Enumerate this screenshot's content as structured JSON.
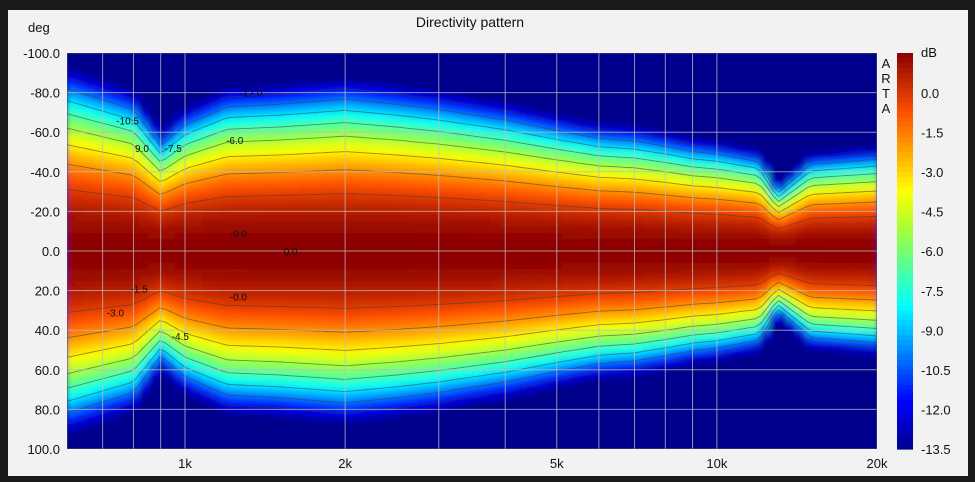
{
  "chart_data": {
    "type": "heatmap",
    "title": "Directivity pattern",
    "ylabel": "deg",
    "colorbar_label": "dB",
    "watermark": "ARTA",
    "x_scale": "log",
    "xlim": [
      600,
      20000
    ],
    "ylim": [
      -100,
      100
    ],
    "x_ticks": [
      1000,
      2000,
      5000,
      10000,
      20000
    ],
    "x_tick_labels": [
      "1k",
      "2k",
      "5k",
      "10k",
      "20k"
    ],
    "y_ticks": [
      -100,
      -80,
      -60,
      -40,
      -20,
      0,
      20,
      40,
      60,
      80,
      100
    ],
    "y_tick_labels": [
      "-100.0",
      "-80.0",
      "-60.0",
      "-40.0",
      "-20.0",
      "0.0",
      "20.0",
      "40.0",
      "60.0",
      "80.0",
      "100.0"
    ],
    "colorbar_ticks": [
      0.0,
      -1.5,
      -3.0,
      -4.5,
      -6.0,
      -7.5,
      -9.0,
      -10.5,
      -12.0,
      -13.5
    ],
    "colorbar_tick_labels": [
      "0.0",
      "-1.5",
      "-3.0",
      "-4.5",
      "-6.0",
      "-7.5",
      "-9.0",
      "-10.5",
      "-12.0",
      "-13.5"
    ],
    "zlim": [
      -13.5,
      0
    ],
    "contour_levels": [
      -1.5,
      -3.0,
      -4.5,
      -6.0,
      -7.5,
      -9.0,
      -10.5,
      -12.0
    ],
    "beamwidth": {
      "freq_hz": [
        600,
        800,
        900,
        1000,
        1200,
        1500,
        2000,
        2500,
        3000,
        4000,
        5000,
        6000,
        7000,
        8000,
        9000,
        10000,
        12000,
        13000,
        15000,
        20000
      ],
      "minus6db_half_angle_deg": [
        62,
        54,
        40,
        48,
        55,
        56,
        58,
        56,
        54,
        50,
        46,
        43,
        42,
        40,
        38,
        37,
        34,
        22,
        33,
        35
      ]
    },
    "contour_labels": [
      {
        "text": "-10.5",
        "freq_hz": 780,
        "angle_deg": -66
      },
      {
        "text": "9.0",
        "freq_hz": 830,
        "angle_deg": -52
      },
      {
        "text": "-7.5",
        "freq_hz": 950,
        "angle_deg": -52
      },
      {
        "text": "-6.0",
        "freq_hz": 1240,
        "angle_deg": -56
      },
      {
        "text": "-12.0",
        "freq_hz": 1330,
        "angle_deg": -80
      },
      {
        "text": "-0.0",
        "freq_hz": 1260,
        "angle_deg": -9
      },
      {
        "text": "0.0",
        "freq_hz": 1580,
        "angle_deg": 0
      },
      {
        "text": "-0.0",
        "freq_hz": 1260,
        "angle_deg": 23
      },
      {
        "text": "-1.5",
        "freq_hz": 820,
        "angle_deg": 19
      },
      {
        "text": "-3.0",
        "freq_hz": 740,
        "angle_deg": 31
      },
      {
        "text": "-4.5",
        "freq_hz": 980,
        "angle_deg": 43
      }
    ],
    "grid": true
  }
}
